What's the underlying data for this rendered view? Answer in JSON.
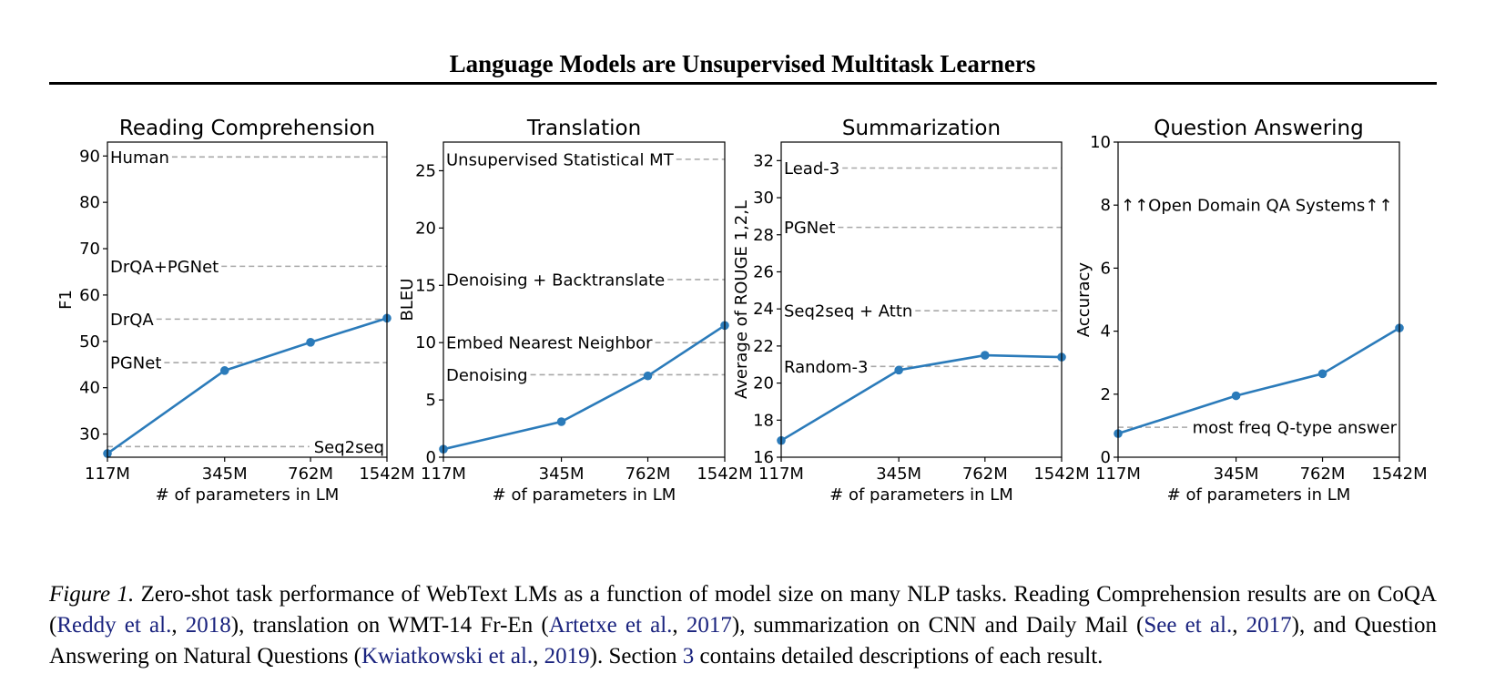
{
  "header": {
    "title": "Language Models are Unsupervised Multitask Learners"
  },
  "colors": {
    "series": "#2b7bba",
    "reference": "#a8a8a8"
  },
  "chart_data": [
    {
      "type": "line",
      "title": "Reading Comprehension",
      "xlabel": "# of parameters in LM",
      "ylabel": "F1",
      "x_ticks": [
        "117M",
        "345M",
        "762M",
        "1542M"
      ],
      "x": [
        117,
        345,
        762,
        1542
      ],
      "x_scale": "log",
      "ylim": [
        25,
        93
      ],
      "y_ticks": [
        30,
        40,
        50,
        60,
        70,
        80,
        90
      ],
      "series": [
        {
          "values": [
            25.8,
            43.7,
            49.8,
            55.0
          ]
        }
      ],
      "reference_lines": [
        {
          "label": "Human",
          "value": 89.8,
          "label_side": "left"
        },
        {
          "label": "DrQA+PGNet",
          "value": 66.2,
          "label_side": "left"
        },
        {
          "label": "DrQA",
          "value": 54.8,
          "label_side": "left"
        },
        {
          "label": "PGNet",
          "value": 45.4,
          "label_side": "left"
        },
        {
          "label": "Seq2seq",
          "value": 27.3,
          "label_side": "right"
        }
      ]
    },
    {
      "type": "line",
      "title": "Translation",
      "xlabel": "# of parameters in LM",
      "ylabel": "BLEU",
      "x_ticks": [
        "117M",
        "345M",
        "762M",
        "1542M"
      ],
      "x": [
        117,
        345,
        762,
        1542
      ],
      "x_scale": "log",
      "ylim": [
        0,
        27.5
      ],
      "y_ticks": [
        0,
        5,
        10,
        15,
        20,
        25
      ],
      "series": [
        {
          "values": [
            0.7,
            3.1,
            7.1,
            11.5
          ]
        }
      ],
      "reference_lines": [
        {
          "label": "Unsupervised Statistical MT",
          "value": 26.0,
          "label_side": "left"
        },
        {
          "label": "Denoising + Backtranslate",
          "value": 15.5,
          "label_side": "left"
        },
        {
          "label": "Embed Nearest Neighbor",
          "value": 10.0,
          "label_side": "left"
        },
        {
          "label": "Denoising",
          "value": 7.2,
          "label_side": "left"
        }
      ]
    },
    {
      "type": "line",
      "title": "Summarization",
      "xlabel": "# of parameters in LM",
      "ylabel": "Average of ROUGE 1,2,L",
      "x_ticks": [
        "117M",
        "345M",
        "762M",
        "1542M"
      ],
      "x": [
        117,
        345,
        762,
        1542
      ],
      "x_scale": "log",
      "ylim": [
        16,
        33
      ],
      "y_ticks": [
        16,
        18,
        20,
        22,
        24,
        26,
        28,
        30,
        32
      ],
      "series": [
        {
          "values": [
            16.9,
            20.7,
            21.5,
            21.4
          ]
        }
      ],
      "reference_lines": [
        {
          "label": "Lead-3",
          "value": 31.6,
          "label_side": "left"
        },
        {
          "label": "PGNet",
          "value": 28.4,
          "label_side": "left"
        },
        {
          "label": "Seq2seq + Attn",
          "value": 23.9,
          "label_side": "left"
        },
        {
          "label": "Random-3",
          "value": 20.9,
          "label_side": "left"
        }
      ]
    },
    {
      "type": "line",
      "title": "Question Answering",
      "xlabel": "# of parameters in LM",
      "ylabel": "Accuracy",
      "x_ticks": [
        "117M",
        "345M",
        "762M",
        "1542M"
      ],
      "x": [
        117,
        345,
        762,
        1542
      ],
      "x_scale": "log",
      "ylim": [
        0,
        10
      ],
      "y_ticks": [
        0,
        2,
        4,
        6,
        8,
        10
      ],
      "series": [
        {
          "values": [
            0.75,
            1.95,
            2.65,
            4.1
          ]
        }
      ],
      "reference_lines": [
        {
          "label": "most freq Q-type answer",
          "value": 0.95,
          "label_side": "right"
        }
      ],
      "annotations": [
        {
          "text": "↑↑Open Domain QA Systems↑↑",
          "value": 8.0
        }
      ]
    }
  ],
  "caption": {
    "figure_label": "Figure 1.",
    "s1": " Zero-shot task performance of WebText LMs as a function of model size on many NLP tasks. Reading Comprehension results are on CoQA (",
    "c1a": "Reddy et al.",
    "s2": ", ",
    "c1b": "2018",
    "s3": "), translation on WMT-14 Fr-En (",
    "c2a": "Artetxe et al.",
    "s4": ", ",
    "c2b": "2017",
    "s5": "), summarization on CNN and Daily Mail (",
    "c3a": "See et al.",
    "s6": ", ",
    "c3b": "2017",
    "s7": "), and Question Answering on Natural Questions (",
    "c4a": "Kwiatkowski et al.",
    "s8": ", ",
    "c4b": "2019",
    "s9": "). Section ",
    "c5": "3",
    "s10": " contains detailed descriptions of each result."
  }
}
